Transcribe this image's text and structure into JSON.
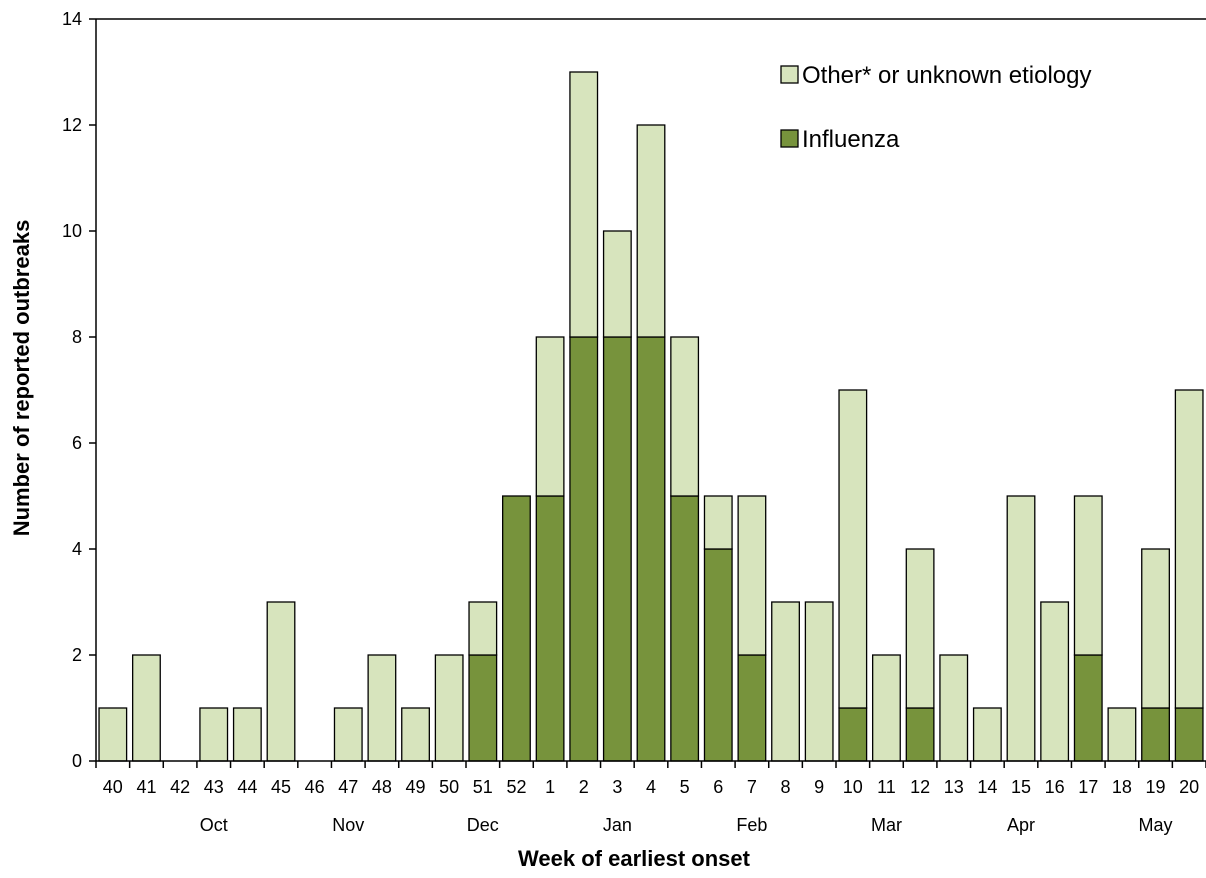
{
  "chart_data": {
    "type": "bar",
    "stacked": true,
    "title": "",
    "xlabel": "Week of earliest onset",
    "ylabel": "Number of reported outbreaks",
    "ylim": [
      0,
      14
    ],
    "yticks": [
      0,
      2,
      4,
      6,
      8,
      10,
      12,
      14
    ],
    "grid": false,
    "legend_position": "top-right",
    "categories": [
      "40",
      "41",
      "42",
      "43",
      "44",
      "45",
      "46",
      "47",
      "48",
      "49",
      "50",
      "51",
      "52",
      "1",
      "2",
      "3",
      "4",
      "5",
      "6",
      "7",
      "8",
      "9",
      "10",
      "11",
      "12",
      "13",
      "14",
      "15",
      "16",
      "17",
      "18",
      "19",
      "20"
    ],
    "month_labels": [
      {
        "label": "Oct",
        "center_week": "43"
      },
      {
        "label": "Nov",
        "center_week": "47"
      },
      {
        "label": "Dec",
        "center_week": "51"
      },
      {
        "label": "Jan",
        "center_week": "3"
      },
      {
        "label": "Feb",
        "center_week": "7"
      },
      {
        "label": "Mar",
        "center_week": "11"
      },
      {
        "label": "Apr",
        "center_week": "15"
      },
      {
        "label": "May",
        "center_week": "19"
      }
    ],
    "series": [
      {
        "name": "Influenza",
        "color": "#77933c",
        "values": [
          0,
          0,
          0,
          0,
          0,
          0,
          0,
          0,
          0,
          0,
          0,
          2,
          5,
          5,
          8,
          8,
          8,
          5,
          4,
          2,
          0,
          0,
          1,
          0,
          1,
          0,
          0,
          0,
          0,
          2,
          0,
          1,
          1
        ]
      },
      {
        "name": "Other* or unknown etiology",
        "color": "#d7e4bd",
        "values": [
          1,
          2,
          0,
          1,
          1,
          3,
          0,
          1,
          2,
          1,
          2,
          1,
          0,
          3,
          5,
          2,
          4,
          3,
          1,
          3,
          3,
          3,
          6,
          2,
          3,
          2,
          1,
          5,
          3,
          3,
          1,
          3,
          6
        ]
      }
    ],
    "legend_order": [
      "Other* or unknown etiology",
      "Influenza"
    ]
  }
}
